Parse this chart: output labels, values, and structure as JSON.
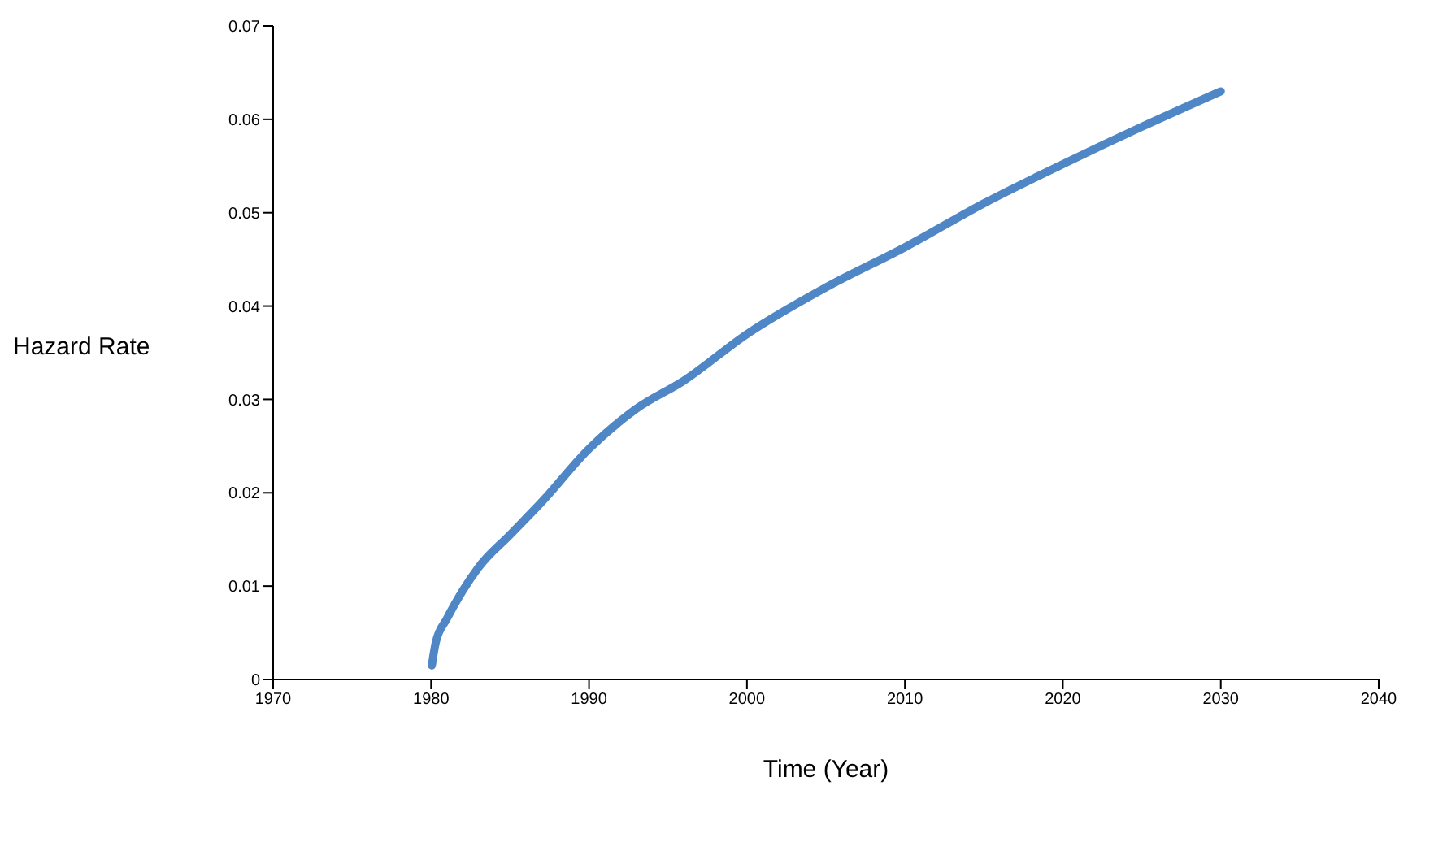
{
  "chart_data": {
    "type": "line",
    "xlabel": "Time (Year)",
    "ylabel": "Hazard Rate",
    "x": [
      1980.05,
      1980.3,
      1981,
      1982,
      1983,
      1985,
      1987,
      1990,
      1993,
      1996,
      2000,
      2005,
      2010,
      2015,
      2020,
      2025,
      2030
    ],
    "series": [
      {
        "color": "#4f86c6",
        "values": [
          0.0015,
          0.004,
          0.0065,
          0.0095,
          0.012,
          0.0155,
          0.019,
          0.0247,
          0.029,
          0.032,
          0.037,
          0.042,
          0.0463,
          0.051,
          0.0552,
          0.0592,
          0.063
        ]
      }
    ],
    "xlim": [
      1970,
      2040
    ],
    "xticks": [
      1970,
      1980,
      1990,
      2000,
      2010,
      2020,
      2030,
      2040
    ],
    "ylim": [
      0,
      0.07
    ],
    "yticks": [
      0,
      0.01,
      0.02,
      0.03,
      0.04,
      0.05,
      0.06,
      0.07
    ],
    "grid": false,
    "legend": false
  }
}
